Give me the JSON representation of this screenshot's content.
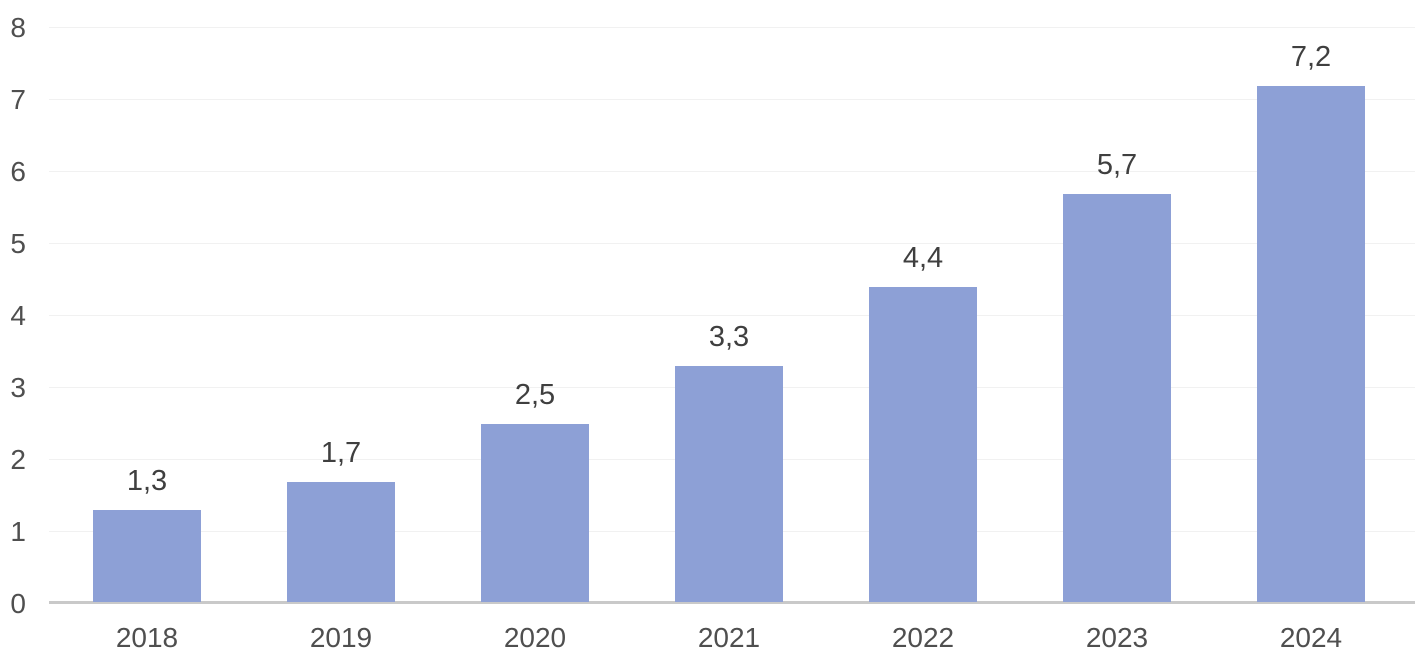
{
  "chart_data": {
    "type": "bar",
    "title": "",
    "xlabel": "",
    "ylabel": "",
    "categories": [
      "2018",
      "2019",
      "2020",
      "2021",
      "2022",
      "2023",
      "2024"
    ],
    "values": [
      1.3,
      1.7,
      2.5,
      3.3,
      4.4,
      5.7,
      7.2
    ],
    "value_labels": [
      "1,3",
      "1,7",
      "2,5",
      "3,3",
      "4,4",
      "5,7",
      "7,2"
    ],
    "ylim": [
      0,
      8
    ],
    "yticks": [
      0,
      1,
      2,
      3,
      4,
      5,
      6,
      7,
      8
    ],
    "grid": true,
    "legend": false,
    "decimal_separator": ",",
    "colors": {
      "bar_fill": "#8da0d6",
      "axis_line": "#c9c9c9",
      "gridline": "#f1f1f1",
      "axis_tick_text": "#4f4f4f",
      "data_label_text": "#3f3f3f",
      "background": "#ffffff"
    }
  }
}
